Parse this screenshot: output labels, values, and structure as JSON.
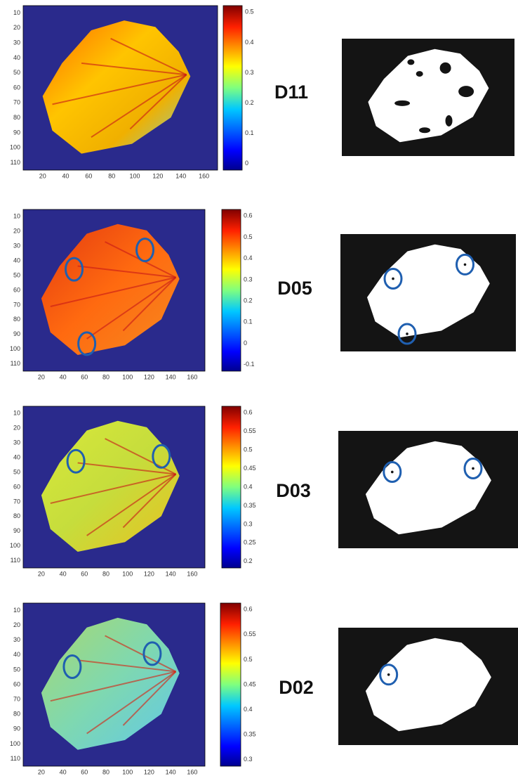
{
  "panels": [
    {
      "label": "D11",
      "y_ticks": [
        "10",
        "20",
        "30",
        "40",
        "50",
        "60",
        "70",
        "80",
        "90",
        "100",
        "110"
      ],
      "x_ticks": [
        "20",
        "40",
        "60",
        "80",
        "100",
        "120",
        "140",
        "160"
      ],
      "colorbar_ticks": [
        "0.5",
        "0.4",
        "0.3",
        "0.2",
        "0.1",
        "0"
      ]
    },
    {
      "label": "D05",
      "y_ticks": [
        "10",
        "20",
        "30",
        "40",
        "50",
        "60",
        "70",
        "80",
        "90",
        "100",
        "110"
      ],
      "x_ticks": [
        "20",
        "40",
        "60",
        "80",
        "100",
        "120",
        "140",
        "160"
      ],
      "colorbar_ticks": [
        "0.6",
        "0.5",
        "0.4",
        "0.3",
        "0.2",
        "0.1",
        "0",
        "-0.1"
      ]
    },
    {
      "label": "D03",
      "y_ticks": [
        "10",
        "20",
        "30",
        "40",
        "50",
        "60",
        "70",
        "80",
        "90",
        "100",
        "110"
      ],
      "x_ticks": [
        "20",
        "40",
        "60",
        "80",
        "100",
        "120",
        "140",
        "160"
      ],
      "colorbar_ticks": [
        "0.6",
        "0.55",
        "0.5",
        "0.45",
        "0.4",
        "0.35",
        "0.3",
        "0.25",
        "0.2"
      ]
    },
    {
      "label": "D02",
      "y_ticks": [
        "10",
        "20",
        "30",
        "40",
        "50",
        "60",
        "70",
        "80",
        "90",
        "100",
        "110"
      ],
      "x_ticks": [
        "20",
        "40",
        "60",
        "80",
        "100",
        "120",
        "140",
        "160"
      ],
      "colorbar_ticks": [
        "0.6",
        "0.55",
        "0.5",
        "0.45",
        "0.4",
        "0.35",
        "0.3"
      ]
    }
  ]
}
